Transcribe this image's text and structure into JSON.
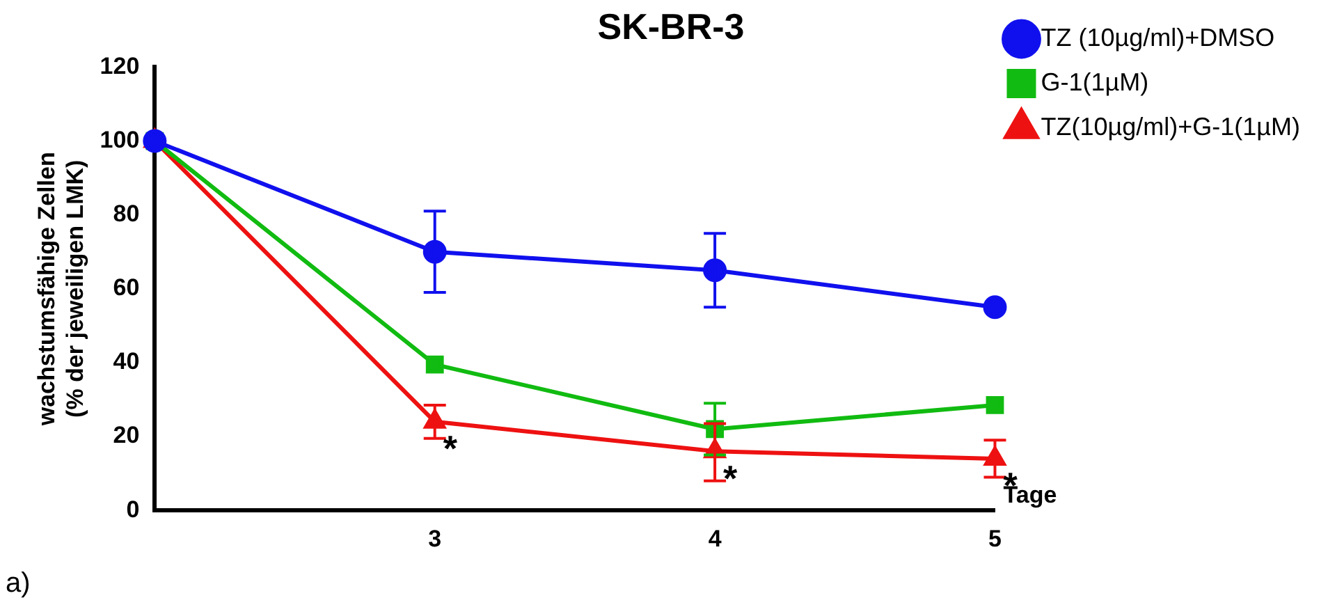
{
  "chart_data": {
    "type": "line",
    "title": "SK-BR-3",
    "xlabel": "Tage",
    "ylabel": "wachstumsfähige Zellen\n(% der jeweiligen LMK)",
    "categories": [
      null,
      "3",
      "4",
      "5"
    ],
    "series": [
      {
        "name": "TZ (10µg/ml)+DMSO",
        "color": "#1010ee",
        "marker": "circle",
        "values": [
          100,
          70,
          65,
          55
        ],
        "errors": [
          null,
          [
            59,
            81
          ],
          [
            55,
            75
          ],
          null
        ]
      },
      {
        "name": "G-1(1µM)",
        "color": "#11bb11",
        "marker": "square",
        "values": [
          100,
          39.5,
          22,
          28.5
        ],
        "errors": [
          null,
          null,
          [
            15,
            29
          ],
          null
        ]
      },
      {
        "name": "TZ(10µg/ml)+G-1(1µM)",
        "color": "#ee1111",
        "marker": "triangle",
        "values": [
          100,
          24,
          16,
          14
        ],
        "errors": [
          null,
          [
            19.5,
            28.5
          ],
          [
            8,
            23.5
          ],
          [
            9,
            19
          ]
        ]
      }
    ],
    "ylim": [
      0,
      120
    ],
    "yticks": [
      0,
      20,
      40,
      60,
      80,
      100,
      120
    ],
    "grid": false,
    "legend": "top right",
    "line_style": "solid",
    "annotations": [
      {
        "text": "*",
        "x": "3",
        "y": 24
      },
      {
        "text": "*",
        "x": "4",
        "y": 16
      },
      {
        "text": "*",
        "x": "5",
        "y": 14
      },
      "a)"
    ]
  }
}
